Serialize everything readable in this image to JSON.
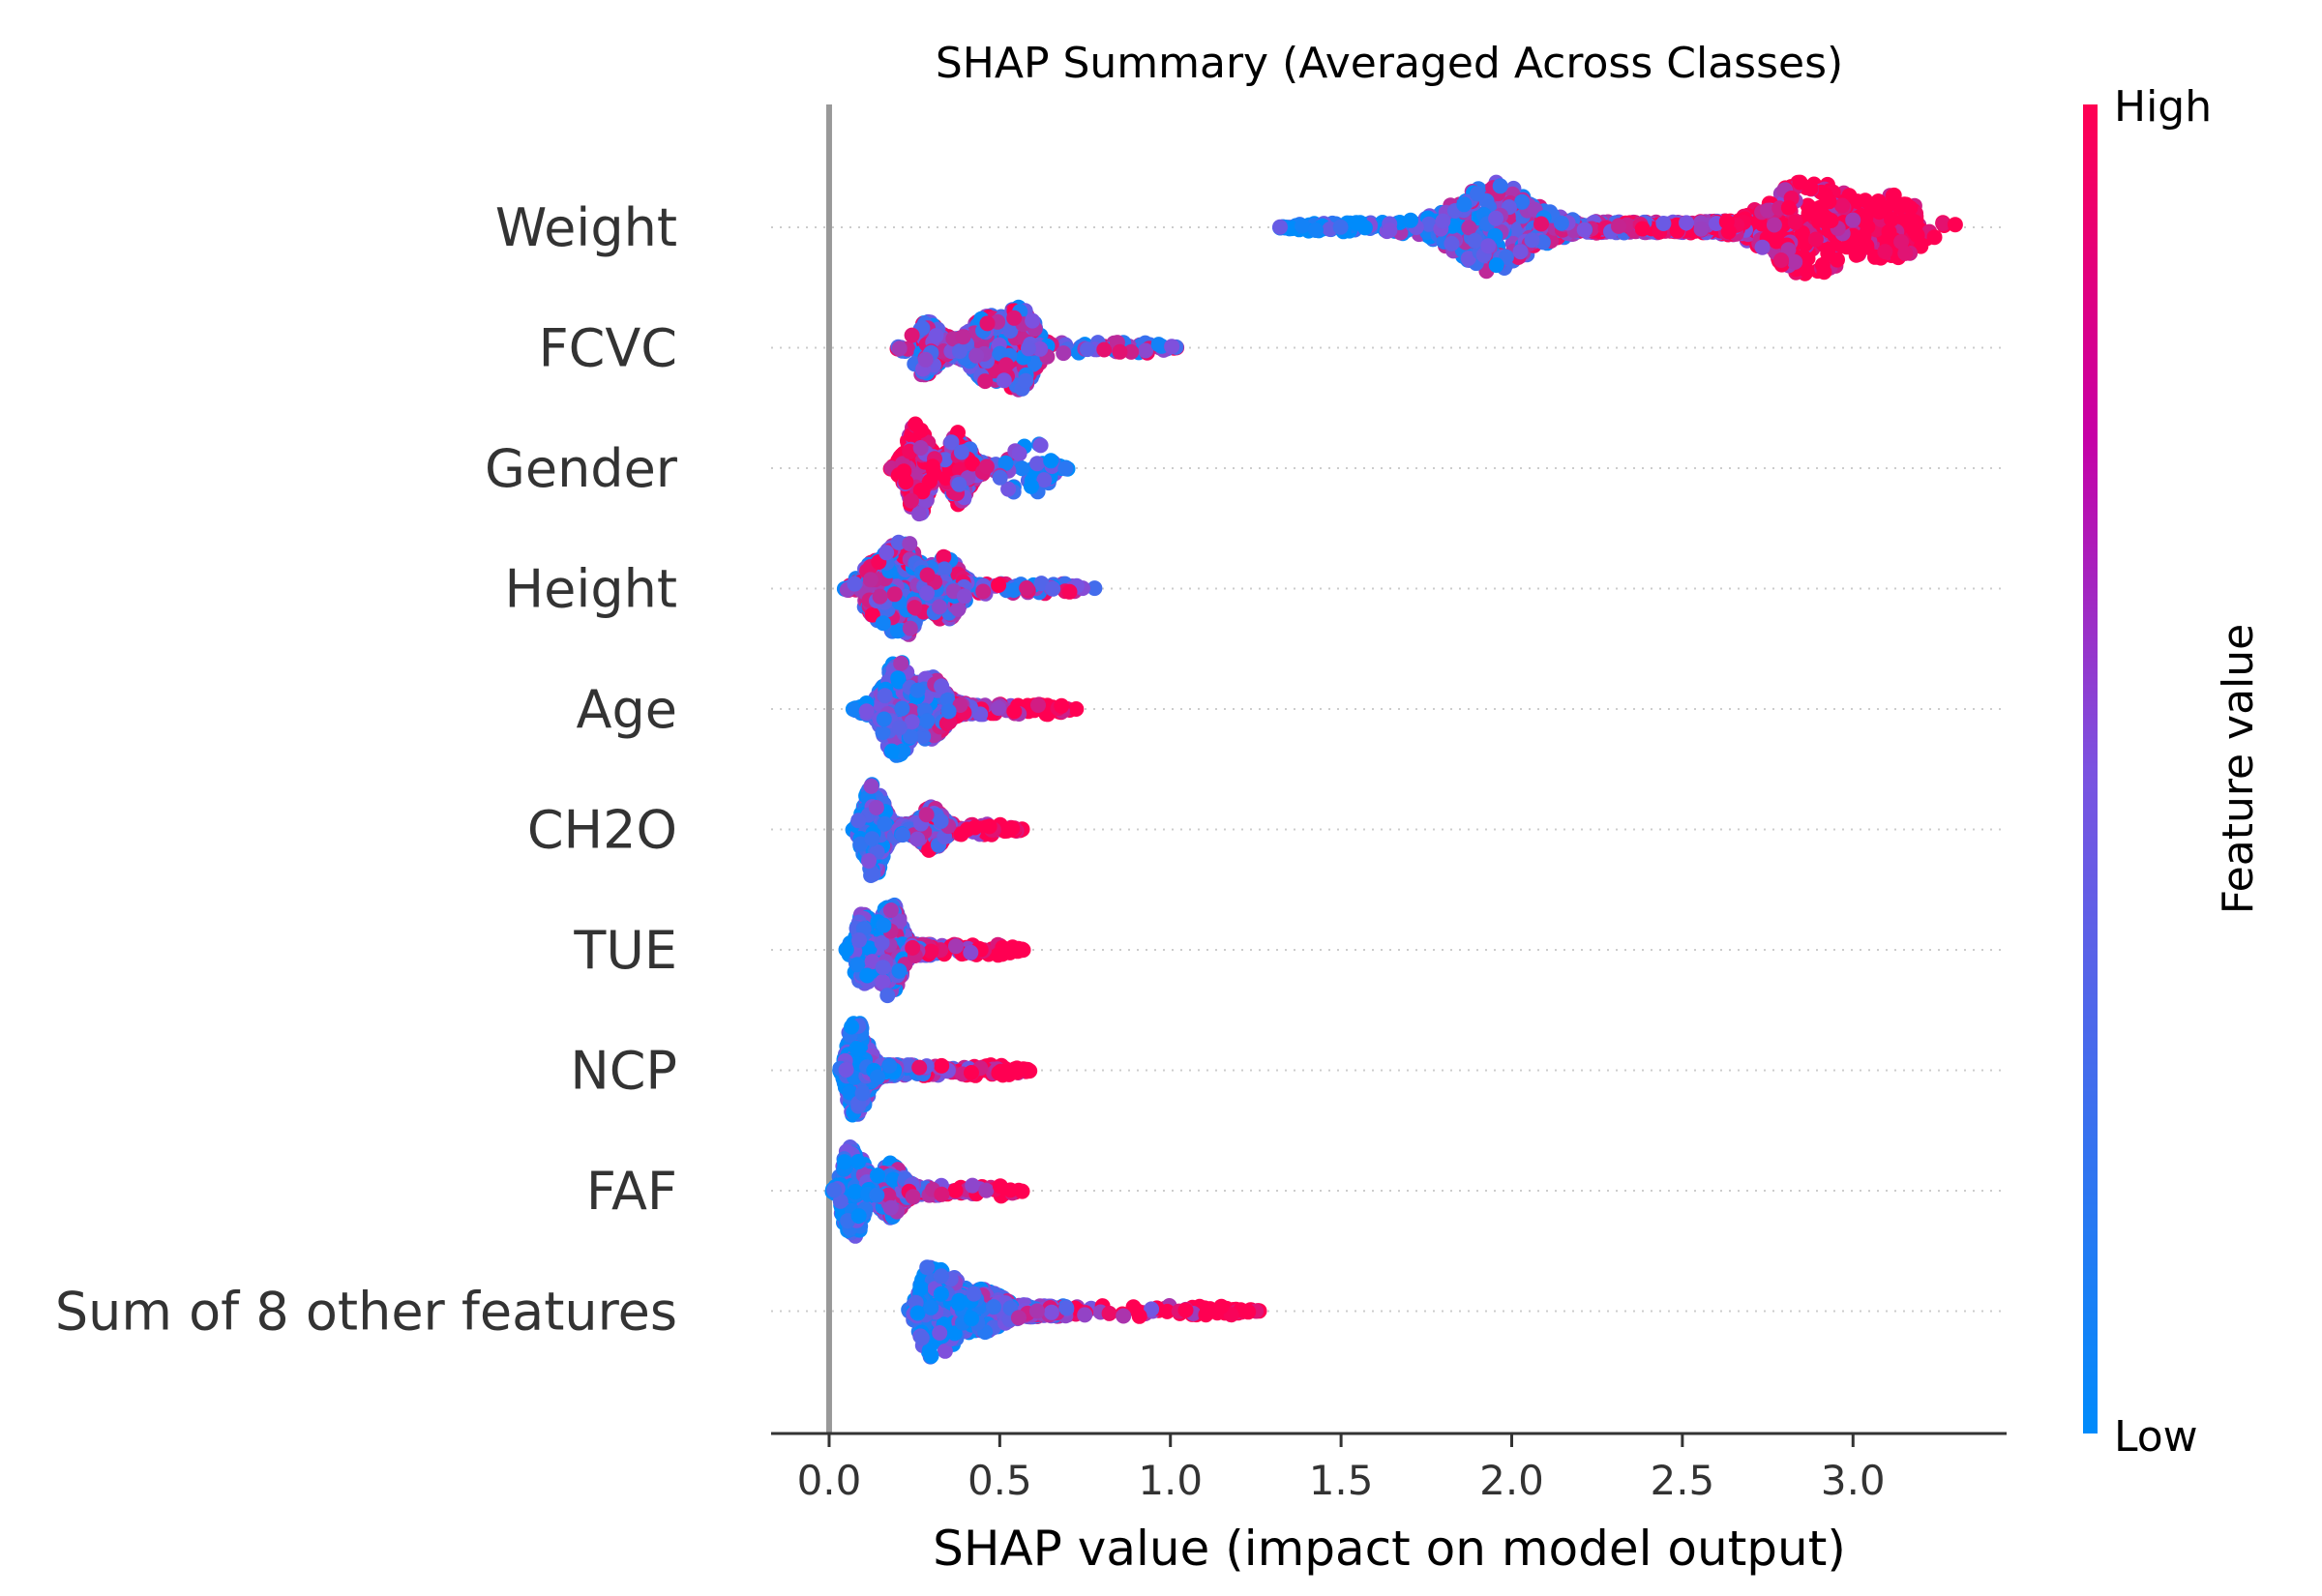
{
  "chart_data": {
    "type": "scatter",
    "subtype": "beeswarm",
    "title": "SHAP Summary (Averaged Across Classes)",
    "xlabel": "SHAP value (impact on model output)",
    "xlim": [
      -0.17,
      3.45
    ],
    "xticks": [
      0.0,
      0.5,
      1.0,
      1.5,
      2.0,
      2.5,
      3.0
    ],
    "xtick_labels": [
      "0.0",
      "0.5",
      "1.0",
      "1.5",
      "2.0",
      "2.5",
      "3.0"
    ],
    "zero_line": 0.0,
    "grid": "dotted horizontal guide per feature",
    "colorbar": {
      "label": "Feature value",
      "high_label": "High",
      "low_label": "Low",
      "high_color": "#ff0052",
      "mid_color": "#c600a6",
      "low_color": "#008bfb",
      "placement": "right"
    },
    "features": [
      {
        "name": "Weight",
        "min": 1.32,
        "max": 3.3,
        "peak": 1.95,
        "dense_range": [
          1.75,
          3.2
        ],
        "high_side": "right",
        "bulges": [
          [
            1.95,
            0.9
          ],
          [
            2.87,
            1.0
          ],
          [
            3.17,
            0.95
          ]
        ]
      },
      {
        "name": "FCVC",
        "min": 0.2,
        "max": 1.03,
        "peak": 0.55,
        "dense_range": [
          0.27,
          0.62
        ],
        "high_side": "mixed",
        "bulges": [
          [
            0.28,
            0.5
          ],
          [
            0.46,
            0.6
          ],
          [
            0.56,
            0.8
          ]
        ]
      },
      {
        "name": "Gender",
        "min": 0.18,
        "max": 0.7,
        "peak": 0.26,
        "dense_range": [
          0.2,
          0.45
        ],
        "high_side": "left",
        "bulges": [
          [
            0.26,
            1.0
          ],
          [
            0.38,
            0.7
          ],
          [
            0.55,
            0.65
          ],
          [
            0.62,
            0.4
          ]
        ]
      },
      {
        "name": "Height",
        "min": 0.04,
        "max": 0.78,
        "peak": 0.22,
        "dense_range": [
          0.1,
          0.4
        ],
        "high_side": "mixed",
        "bulges": [
          [
            0.14,
            0.5
          ],
          [
            0.22,
            1.0
          ],
          [
            0.34,
            0.6
          ]
        ]
      },
      {
        "name": "Age",
        "min": 0.07,
        "max": 0.74,
        "peak": 0.19,
        "dense_range": [
          0.14,
          0.4
        ],
        "high_side": "right",
        "bulges": [
          [
            0.2,
            1.0
          ],
          [
            0.3,
            0.6
          ]
        ]
      },
      {
        "name": "CH2O",
        "min": 0.07,
        "max": 0.57,
        "peak": 0.13,
        "dense_range": [
          0.08,
          0.35
        ],
        "high_side": "right",
        "bulges": [
          [
            0.13,
            1.0
          ],
          [
            0.3,
            0.4
          ]
        ]
      },
      {
        "name": "TUE",
        "min": 0.05,
        "max": 0.57,
        "peak": 0.18,
        "dense_range": [
          0.08,
          0.3
        ],
        "high_side": "right",
        "bulges": [
          [
            0.1,
            0.7
          ],
          [
            0.18,
            1.0
          ]
        ]
      },
      {
        "name": "NCP",
        "min": 0.03,
        "max": 0.59,
        "peak": 0.08,
        "dense_range": [
          0.04,
          0.2
        ],
        "high_side": "right",
        "bulges": [
          [
            0.08,
            1.0
          ]
        ]
      },
      {
        "name": "FAF",
        "min": 0.01,
        "max": 0.57,
        "peak": 0.07,
        "dense_range": [
          0.03,
          0.25
        ],
        "high_side": "right",
        "bulges": [
          [
            0.07,
            1.0
          ],
          [
            0.18,
            0.5
          ]
        ]
      },
      {
        "name": "Sum of 8 other features",
        "min": 0.23,
        "max": 1.27,
        "peak": 0.31,
        "dense_range": [
          0.25,
          0.7
        ],
        "high_side": "right",
        "bulges": [
          [
            0.31,
            1.0
          ],
          [
            0.45,
            0.35
          ]
        ]
      }
    ]
  }
}
